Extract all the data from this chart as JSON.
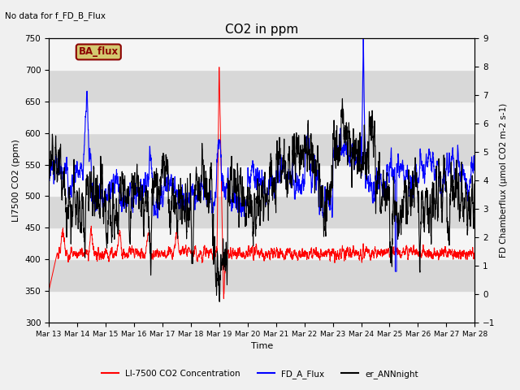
{
  "title": "CO2 in ppm",
  "xlabel": "Time",
  "ylabel_left": "LI7500 CO2 (ppm)",
  "ylabel_right": "FD Chamberflux (μmol CO2 m-2 s-1)",
  "ylim_left": [
    300,
    750
  ],
  "ylim_right": [
    -1.0,
    9.0
  ],
  "no_data_text": "No data for f_FD_B_Flux",
  "ba_flux_label": "BA_flux",
  "x_tick_labels": [
    "Mar 13",
    "Mar 14",
    "Mar 15",
    "Mar 16",
    "Mar 17",
    "Mar 18",
    "Mar 19",
    "Mar 20",
    "Mar 21",
    "Mar 22",
    "Mar 23",
    "Mar 24",
    "Mar 25",
    "Mar 26",
    "Mar 27",
    "Mar 28"
  ],
  "legend_entries": [
    "LI-7500 CO2 Concentration",
    "FD_A_Flux",
    "er_ANNnight"
  ],
  "background_color": "#f0f0f0",
  "plot_bg_color": "#ebebeb",
  "stripe_light": "#f5f5f5",
  "stripe_dark": "#d8d8d8",
  "n_points": 3000,
  "seed": 7
}
